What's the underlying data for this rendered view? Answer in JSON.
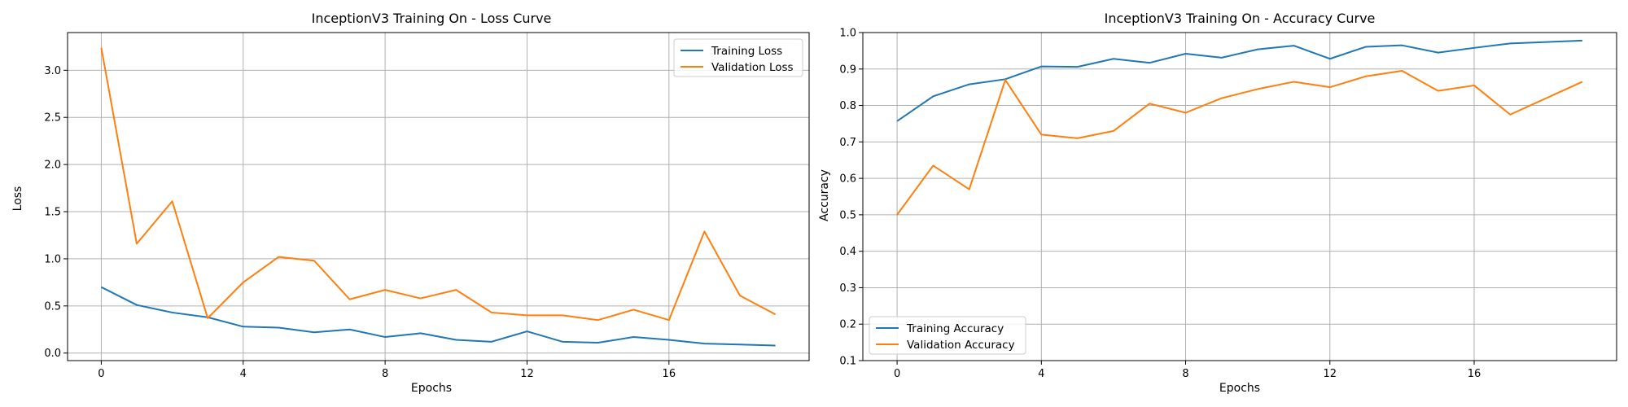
{
  "chart_data": [
    {
      "type": "line",
      "title": "InceptionV3 Training On - Loss Curve",
      "xlabel": "Epochs",
      "ylabel": "Loss",
      "xlim": [
        -0.95,
        19.95
      ],
      "ylim": [
        -0.08,
        3.4
      ],
      "xticks": [
        0,
        4,
        8,
        12,
        16
      ],
      "yticks": [
        0.0,
        0.5,
        1.0,
        1.5,
        2.0,
        2.5,
        3.0
      ],
      "ytick_labels": [
        "0.0",
        "0.5",
        "1.0",
        "1.5",
        "2.0",
        "2.5",
        "3.0"
      ],
      "grid": true,
      "legend": "top-right",
      "x": [
        0,
        1,
        2,
        3,
        4,
        5,
        6,
        7,
        8,
        9,
        10,
        11,
        12,
        13,
        14,
        15,
        16,
        17,
        18,
        19
      ],
      "series": [
        {
          "name": "Training Loss",
          "color": "#1f77b4",
          "values": [
            0.7,
            0.51,
            0.43,
            0.38,
            0.28,
            0.27,
            0.22,
            0.25,
            0.17,
            0.21,
            0.14,
            0.12,
            0.23,
            0.12,
            0.11,
            0.17,
            0.14,
            0.1,
            0.09,
            0.08
          ]
        },
        {
          "name": "Validation Loss",
          "color": "#ff7f0e",
          "values": [
            3.24,
            1.16,
            1.61,
            0.37,
            0.75,
            1.02,
            0.98,
            0.57,
            0.67,
            0.58,
            0.67,
            0.43,
            0.4,
            0.4,
            0.35,
            0.46,
            0.35,
            1.29,
            0.61,
            0.41
          ]
        }
      ]
    },
    {
      "type": "line",
      "title": "InceptionV3 Training On - Accuracy Curve",
      "xlabel": "Epochs",
      "ylabel": "Accuracy",
      "xlim": [
        -0.95,
        19.95
      ],
      "ylim": [
        0.1,
        1.0
      ],
      "xticks": [
        0,
        4,
        8,
        12,
        16
      ],
      "yticks": [
        0.1,
        0.2,
        0.3,
        0.4,
        0.5,
        0.6,
        0.7,
        0.8,
        0.9,
        1.0
      ],
      "ytick_labels": [
        "0.1",
        "0.2",
        "0.3",
        "0.4",
        "0.5",
        "0.6",
        "0.7",
        "0.8",
        "0.9",
        "1.0"
      ],
      "grid": true,
      "legend": "bottom-left",
      "x": [
        0,
        1,
        2,
        3,
        4,
        5,
        6,
        7,
        8,
        9,
        10,
        11,
        12,
        13,
        14,
        15,
        16,
        17,
        18,
        19
      ],
      "series": [
        {
          "name": "Training Accuracy",
          "color": "#1f77b4",
          "values": [
            0.757,
            0.825,
            0.858,
            0.872,
            0.907,
            0.906,
            0.928,
            0.917,
            0.942,
            0.931,
            0.954,
            0.964,
            0.928,
            0.961,
            0.965,
            0.945,
            0.958,
            0.97,
            0.974,
            0.978
          ]
        },
        {
          "name": "Validation Accuracy",
          "color": "#ff7f0e",
          "values": [
            0.5,
            0.635,
            0.57,
            0.87,
            0.72,
            0.71,
            0.73,
            0.805,
            0.78,
            0.82,
            0.845,
            0.865,
            0.85,
            0.88,
            0.895,
            0.84,
            0.855,
            0.775,
            0.82,
            0.865
          ]
        }
      ]
    }
  ]
}
